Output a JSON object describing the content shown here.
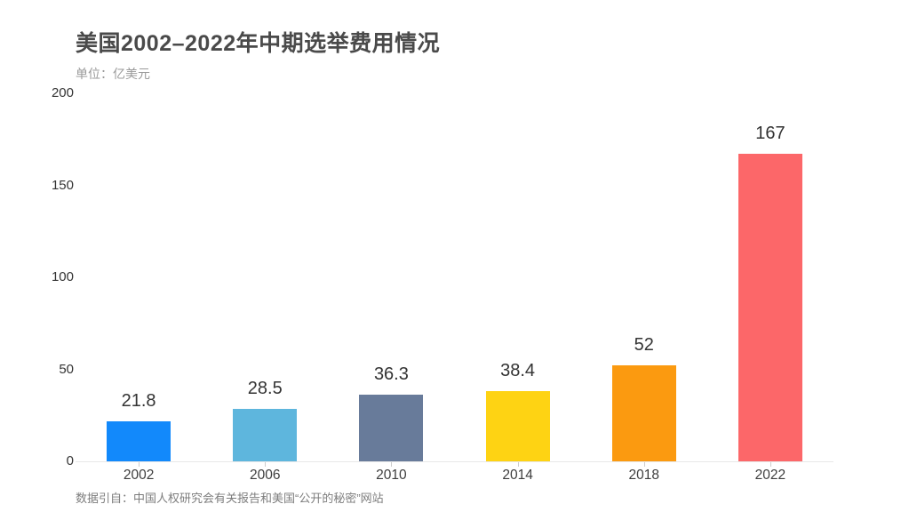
{
  "header": {
    "title": "美国2002–2022年中期选举费用情况",
    "unit_label": "单位：亿美元"
  },
  "footer": {
    "source": "数据引自：中国人权研究会有关报告和美国“公开的秘密”网站"
  },
  "chart_data": {
    "type": "bar",
    "title": "美国2002–2022年中期选举费用情况",
    "subtitle": "单位：亿美元",
    "categories": [
      "2002",
      "2006",
      "2010",
      "2014",
      "2018",
      "2022"
    ],
    "values": [
      21.8,
      28.5,
      36.3,
      38.4,
      52,
      167
    ],
    "value_labels": [
      "21.8",
      "28.5",
      "36.3",
      "38.4",
      "52",
      "167"
    ],
    "bar_colors": [
      "#1289fb",
      "#5eb6dd",
      "#687b9a",
      "#fed313",
      "#fb9a10",
      "#fc6769"
    ],
    "xlabel": "",
    "ylabel": "",
    "unit": "亿美元",
    "ylim": [
      0,
      200
    ],
    "yticks": [
      0,
      50,
      100,
      150,
      200
    ],
    "grid": false,
    "legend": false,
    "source_note": "数据引自：中国人权研究会有关报告和美国“公开的秘密”网站",
    "style": {
      "axis_line_color": "#e8e8e8",
      "tick_color": "#cccccc",
      "title_color": "#4a4a4a",
      "subtitle_color": "#9a9a9a",
      "value_label_color": "#333333",
      "axis_label_color": "#3d3d3d",
      "source_color": "#7d7d7d",
      "background": "#ffffff"
    }
  }
}
